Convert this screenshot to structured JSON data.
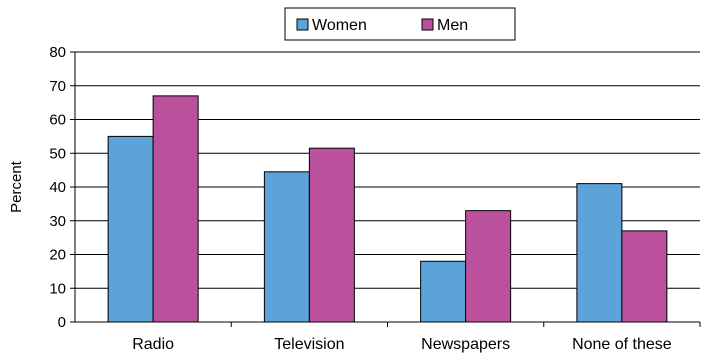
{
  "chart_data": {
    "type": "bar",
    "title": "",
    "xlabel": "",
    "ylabel": "Percent",
    "ylim": [
      0,
      80
    ],
    "yticks": [
      0,
      10,
      20,
      30,
      40,
      50,
      60,
      70,
      80
    ],
    "grid": true,
    "legend_position": "top-center",
    "categories": [
      "Radio",
      "Television",
      "Newspapers",
      "None of these"
    ],
    "series": [
      {
        "name": "Women",
        "color": "#5ba3d9",
        "values": [
          55,
          44.5,
          18,
          41
        ]
      },
      {
        "name": "Men",
        "color": "#bb519d",
        "values": [
          67,
          51.5,
          33,
          27
        ]
      }
    ]
  }
}
